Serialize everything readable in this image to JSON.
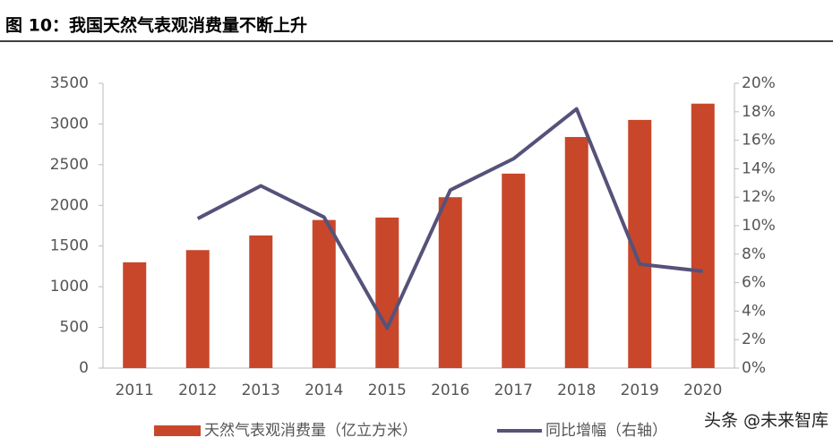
{
  "chart_data": {
    "type": "bar-line",
    "title": "图 10：我国天然气表观消费量不断上升",
    "categories": [
      "2011",
      "2012",
      "2013",
      "2014",
      "2015",
      "2016",
      "2017",
      "2018",
      "2019",
      "2020"
    ],
    "series": [
      {
        "name": "天然气表观消费量（亿立方米）",
        "type": "bar",
        "color": "#c8472a",
        "values": [
          1300,
          1450,
          1630,
          1820,
          1850,
          2100,
          2390,
          2840,
          3050,
          3250
        ]
      },
      {
        "name": "同比增幅（右轴）",
        "type": "line",
        "axis": "y2",
        "color": "#55527a",
        "values": [
          null,
          10.5,
          12.8,
          10.6,
          2.8,
          12.5,
          14.7,
          18.2,
          7.3,
          6.8
        ]
      }
    ],
    "ylim": [
      0,
      3500
    ],
    "yticks": [
      0,
      500,
      1000,
      1500,
      2000,
      2500,
      3000,
      3500
    ],
    "y2lim": [
      0,
      20
    ],
    "y2ticks": [
      {
        "value": 0,
        "label": "0%"
      },
      {
        "value": 2,
        "label": "2%"
      },
      {
        "value": 4,
        "label": "4%"
      },
      {
        "value": 6,
        "label": "6%"
      },
      {
        "value": 8,
        "label": "8%"
      },
      {
        "value": 10,
        "label": "10%"
      },
      {
        "value": 12,
        "label": "12%"
      },
      {
        "value": 14,
        "label": "14%"
      },
      {
        "value": 16,
        "label": "16%"
      },
      {
        "value": 18,
        "label": "18%"
      },
      {
        "value": 20,
        "label": "20%"
      }
    ],
    "watermark": "头条 @未来智库"
  }
}
